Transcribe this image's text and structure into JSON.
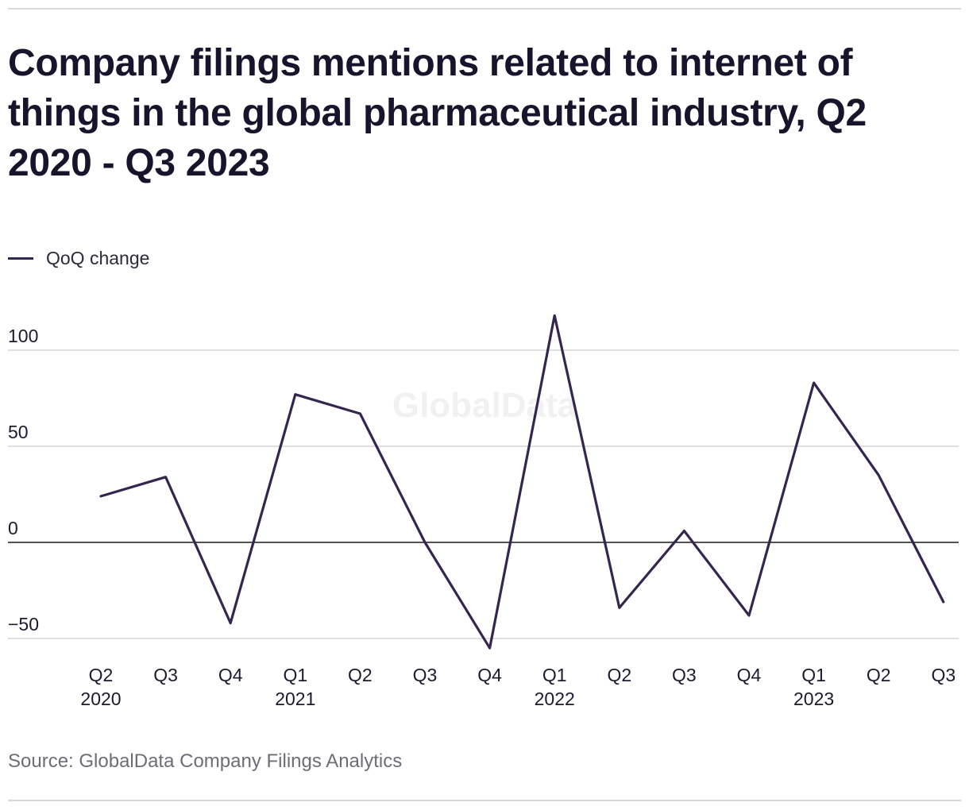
{
  "title": "Company filings mentions related to internet of things in the global pharmaceutical industry, Q2 2020 - Q3 2023",
  "source": "Source: GlobalData Company Filings Analytics",
  "watermark": "GlobalData",
  "colors": {
    "line": "#34264f",
    "grid": "#d6d6d6",
    "zero": "#1a1a1a",
    "tick_text": "#1c1a2e",
    "watermark": "#f1f1f3"
  },
  "chart_data": {
    "type": "line",
    "title": "Company filings mentions related to internet of things in the global pharmaceutical industry, Q2 2020 - Q3 2023",
    "xlabel": "",
    "ylabel": "",
    "categories": [
      "Q2 2020",
      "Q3 2020",
      "Q4 2020",
      "Q1 2021",
      "Q2 2021",
      "Q3 2021",
      "Q4 2021",
      "Q1 2022",
      "Q2 2022",
      "Q3 2022",
      "Q4 2022",
      "Q1 2023",
      "Q2 2023",
      "Q3 2023"
    ],
    "x_tick_labels": [
      {
        "quarter": "Q2",
        "year": "2020"
      },
      {
        "quarter": "Q3",
        "year": ""
      },
      {
        "quarter": "Q4",
        "year": ""
      },
      {
        "quarter": "Q1",
        "year": "2021"
      },
      {
        "quarter": "Q2",
        "year": ""
      },
      {
        "quarter": "Q3",
        "year": ""
      },
      {
        "quarter": "Q4",
        "year": ""
      },
      {
        "quarter": "Q1",
        "year": "2022"
      },
      {
        "quarter": "Q2",
        "year": ""
      },
      {
        "quarter": "Q3",
        "year": ""
      },
      {
        "quarter": "Q4",
        "year": ""
      },
      {
        "quarter": "Q1",
        "year": "2023"
      },
      {
        "quarter": "Q2",
        "year": ""
      },
      {
        "quarter": "Q3",
        "year": ""
      }
    ],
    "series": [
      {
        "name": "QoQ change",
        "values": [
          24,
          34,
          -42,
          77,
          67,
          0,
          -55,
          118,
          -34,
          6,
          -38,
          83,
          35,
          -31
        ]
      }
    ],
    "y_ticks": [
      100,
      50,
      0,
      -50
    ],
    "y_tick_labels": [
      "100",
      "50",
      "0",
      "−50"
    ],
    "ylim": [
      -55,
      120
    ],
    "grid": true,
    "legend_position": "top-left"
  }
}
